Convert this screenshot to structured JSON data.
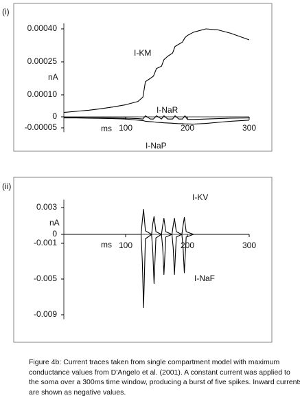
{
  "chart_data": [
    {
      "type": "line",
      "panel_label": "(i)",
      "xlabel": "ms",
      "ylabel": "nA",
      "x": [
        0,
        20,
        40,
        60,
        80,
        100,
        120,
        128,
        132,
        140,
        145,
        150,
        158,
        162,
        168,
        176,
        180,
        186,
        192,
        196,
        200,
        210,
        230,
        250,
        270,
        300
      ],
      "xlim": [
        0,
        300
      ],
      "xticks": [
        100,
        200,
        300
      ],
      "ylim": [
        -7e-05,
        0.00045
      ],
      "yticks": [
        {
          "value": 0.0004,
          "label": "0.00040"
        },
        {
          "value": 0.00025,
          "label": "0.00025"
        },
        {
          "value": 0.0001,
          "label": "0.00010"
        },
        0,
        {
          "value": -5e-05,
          "label": "-0.00005"
        }
      ],
      "series": [
        {
          "name": "I-KM",
          "color": "#000000",
          "values": [
            2e-05,
            2.5e-05,
            3e-05,
            3.7e-05,
            4.5e-05,
            5.5e-05,
            7e-05,
            9e-05,
            0.00016,
            0.000175,
            0.000185,
            0.00022,
            0.00023,
            0.00026,
            0.000275,
            0.00029,
            0.00032,
            0.00033,
            0.00034,
            0.00036,
            0.00037,
            0.000385,
            0.0004,
            0.000395,
            0.00038,
            0.00035
          ]
        },
        {
          "name": "I-NaR",
          "color": "#000000",
          "values": [
            -3e-06,
            -3e-06,
            -4e-06,
            -4e-06,
            -5e-06,
            -6e-06,
            -8e-06,
            -1e-05,
            5e-06,
            -1e-05,
            -1e-05,
            5e-06,
            -1e-05,
            5e-06,
            -1e-05,
            -1e-05,
            5e-06,
            -1e-05,
            -1e-05,
            5e-06,
            -1.2e-05,
            -1.2e-05,
            -1e-05,
            -8e-06,
            -6e-06,
            -5e-06
          ]
        },
        {
          "name": "I-NaP",
          "color": "#000000",
          "values": [
            -5e-06,
            -5e-06,
            -6e-06,
            -7e-06,
            -8e-06,
            -1e-05,
            -1.5e-05,
            -1.7e-05,
            -2e-05,
            -2.2e-05,
            -2.3e-05,
            -2.5e-05,
            -2.6e-05,
            -2.7e-05,
            -2.8e-05,
            -2.9e-05,
            -3e-05,
            -3.1e-05,
            -3.1e-05,
            -3.2e-05,
            -3.2e-05,
            -3.3e-05,
            -3e-05,
            -2.5e-05,
            -2e-05,
            -1.5e-05
          ]
        }
      ]
    },
    {
      "type": "line",
      "panel_label": "(ii)",
      "xlabel": "ms",
      "ylabel": "nA",
      "x": [
        0,
        100,
        125,
        127,
        129,
        132,
        142,
        144,
        146,
        149,
        158,
        160,
        162,
        165,
        175,
        177,
        179,
        182,
        191,
        193,
        195,
        198,
        210,
        300
      ],
      "xlim": [
        0,
        300
      ],
      "xticks": [
        100,
        200,
        300
      ],
      "ylim": [
        -0.0095,
        0.0045
      ],
      "yticks": [
        0.003,
        0,
        -0.001,
        -0.005,
        -0.009
      ],
      "series": [
        {
          "name": "I-KV",
          "color": "#000000",
          "values": [
            0,
            0,
            0,
            0.0015,
            0.0028,
            0.0004,
            0,
            0.0012,
            0.002,
            0.0003,
            0,
            0.001,
            0.0018,
            0.0003,
            0,
            0.001,
            0.0018,
            0.0003,
            0,
            0.001,
            0.0019,
            0.0003,
            0,
            0
          ]
        },
        {
          "name": "I-NaF",
          "color": "#000000",
          "values": [
            0,
            0,
            0,
            -0.003,
            -0.0082,
            -0.0005,
            0,
            -0.002,
            -0.0055,
            -0.0004,
            0,
            -0.0015,
            -0.0045,
            -0.0003,
            0,
            -0.0015,
            -0.0045,
            -0.0003,
            0,
            -0.0015,
            -0.0043,
            -0.0003,
            0,
            0
          ]
        }
      ]
    }
  ],
  "caption": [
    "Figure 4b:  Current traces taken from single compartment model with maximum",
    "conductance values from D'Angelo et al. (2001). A constant current was applied to",
    "the soma over a 300ms time window, producing a burst of five spikes. Inward currents",
    "are shown as negative values."
  ]
}
